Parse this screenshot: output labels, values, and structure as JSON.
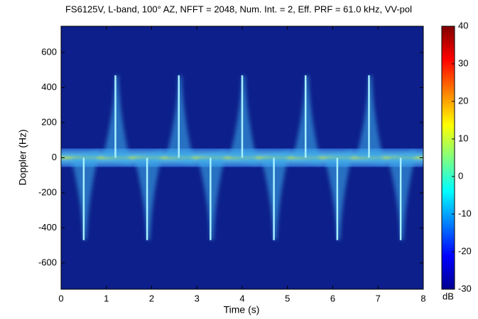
{
  "chart_data": {
    "type": "spectrogram",
    "title": "FS6125V, L-band, 100° AZ, NFFT = 2048, Num. Int. = 2, Eff. PRF = 61.0 kHz, VV-pol",
    "xlabel": "Time (s)",
    "ylabel": "Doppler (Hz)",
    "xlim": [
      0,
      8
    ],
    "xticks": [
      0,
      1,
      2,
      3,
      4,
      5,
      6,
      7,
      8
    ],
    "ylim": [
      -750,
      750
    ],
    "yticks": [
      -600,
      -400,
      -200,
      0,
      200,
      400,
      600
    ],
    "colorbar": {
      "label": "dB",
      "clim": [
        -30,
        40
      ],
      "cticks": [
        -30,
        -20,
        -10,
        0,
        10,
        20,
        30,
        40
      ]
    },
    "peaks": {
      "x": [
        1.2,
        2.6,
        4.0,
        5.4,
        6.8
      ],
      "values": [
        470,
        470,
        470,
        470,
        470
      ]
    },
    "troughs": {
      "x": [
        0.5,
        1.9,
        3.3,
        4.7,
        6.1,
        7.5
      ],
      "values": [
        -470,
        -470,
        -470,
        -470,
        -470,
        -470
      ]
    }
  }
}
